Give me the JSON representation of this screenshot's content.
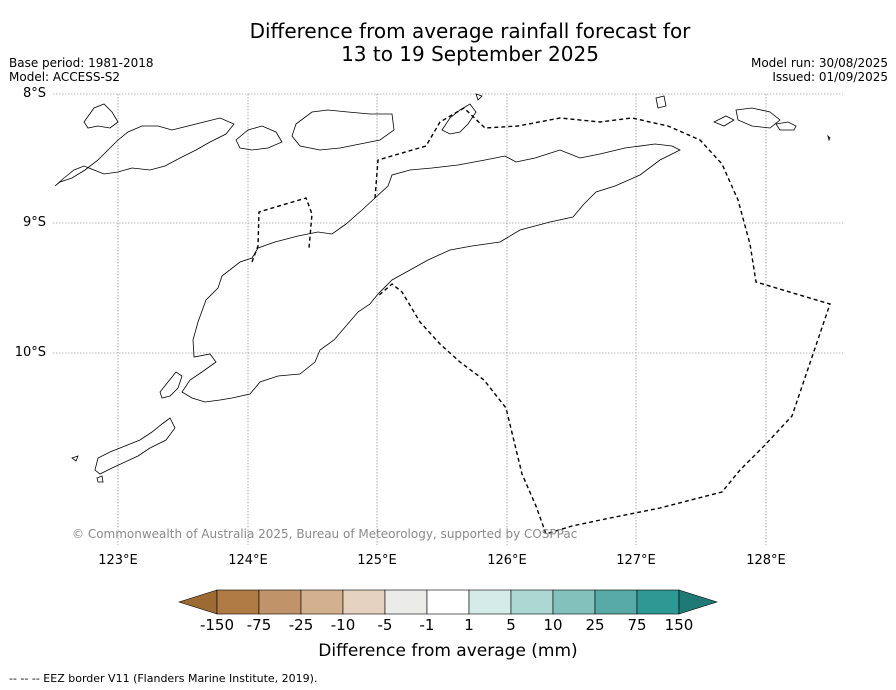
{
  "title": {
    "line1": "Difference from average rainfall forecast for",
    "line2": "13 to 19 September 2025"
  },
  "meta": {
    "base_period": "Base period: 1981-2018",
    "model": "Model: ACCESS-S2",
    "model_run": "Model run: 30/08/2025",
    "issued": "Issued: 01/09/2025"
  },
  "map": {
    "credit": "© Commonwealth of Australia 2025, Bureau of Meteorology, supported by COSPPac",
    "lon_ticks": [
      "123°E",
      "124°E",
      "125°E",
      "126°E",
      "127°E",
      "128°E"
    ],
    "lat_ticks": [
      "8°S",
      "9°S",
      "10°S"
    ],
    "land_fill": "none",
    "coast_color": "#000000"
  },
  "colorbar": {
    "title": "Difference from average (mm)",
    "labels": [
      "-150",
      "-75",
      "-25",
      "-10",
      "-5",
      "-1",
      "1",
      "5",
      "10",
      "25",
      "75",
      "150"
    ],
    "colors": [
      "#9d6a34",
      "#b07a44",
      "#c1936a",
      "#d3b08e",
      "#e4d2bf",
      "#ebebea",
      "#ffffff",
      "#d4ebe7",
      "#acd7d3",
      "#82c1bc",
      "#57aaa6",
      "#2e9894",
      "#1f7a76"
    ]
  },
  "footer": "--  --  -- EEZ border V11 (Flanders Marine Institute, 2019)."
}
